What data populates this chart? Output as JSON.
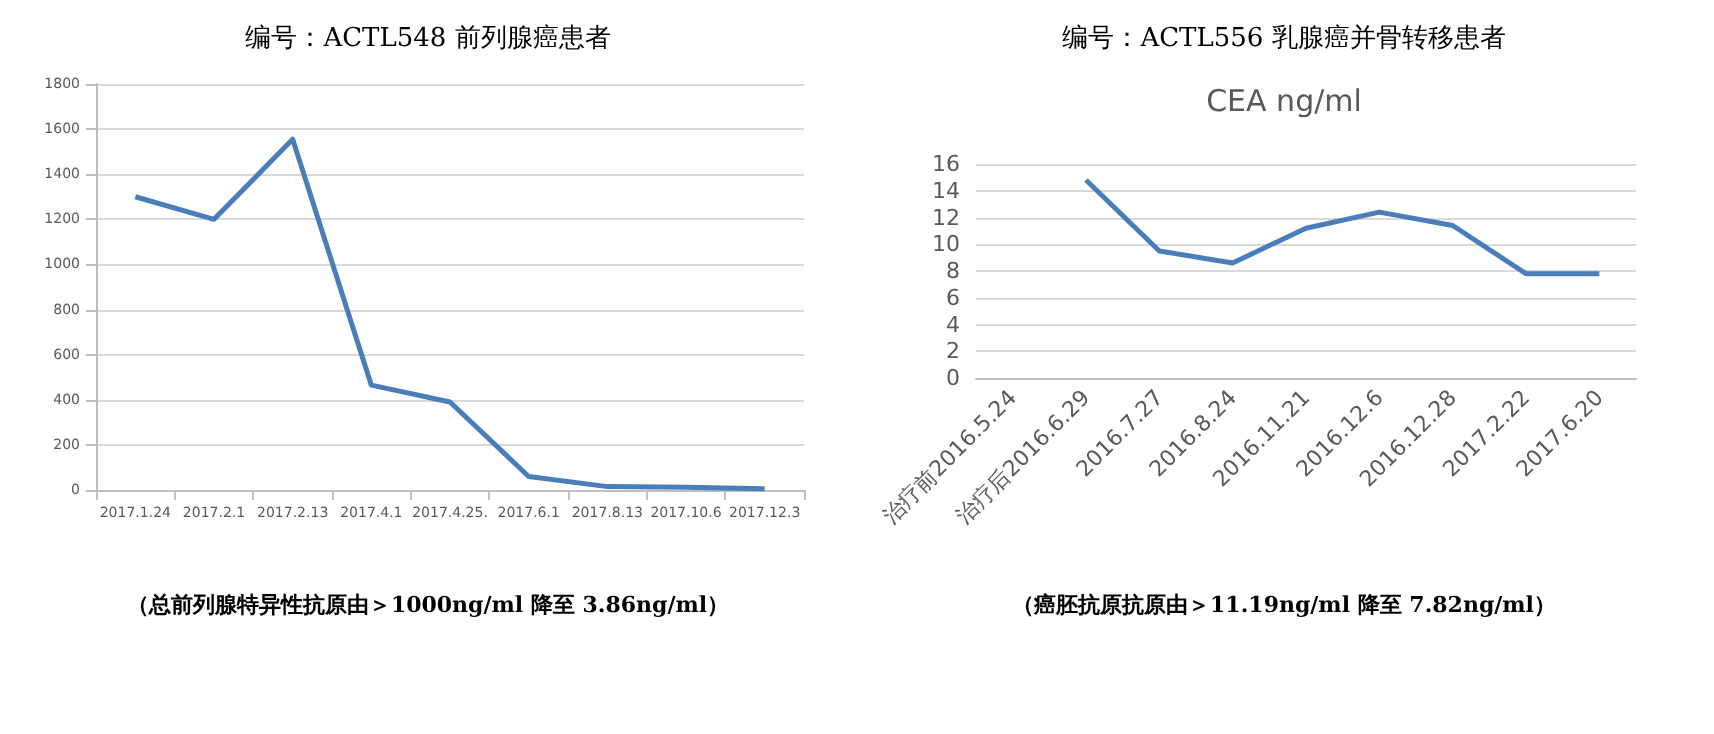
{
  "chart_data": [
    {
      "type": "line",
      "title": "编号：ACTL548 前列腺癌患者",
      "annotations": [
        "（总前列腺特异性抗原由＞1000ng/ml 降至 3.86ng/ml）"
      ],
      "categories": [
        "2017.1.24",
        "2017.2.1",
        "2017.2.13",
        "2017.4.1",
        "2017.4.25.",
        "2017.6.1",
        "2017.8.13",
        "2017.10.6",
        "2017.12.3"
      ],
      "series": [
        {
          "color": "#4a7ebb",
          "values": [
            1300,
            1200,
            1555,
            465,
            390,
            60,
            15,
            12,
            5
          ]
        }
      ],
      "ylim": [
        0,
        1800
      ],
      "yticks": [
        0,
        200,
        400,
        600,
        800,
        1000,
        1200,
        1400,
        1600,
        1800
      ],
      "grid": "y",
      "marker": "none",
      "line_style": "solid"
    },
    {
      "type": "line",
      "title": "编号：ACTL556 乳腺癌并骨转移患者",
      "subtitle": "CEA ng/ml",
      "annotations": [
        "（癌胚抗原抗原由＞11.19ng/ml 降至 7.82ng/ml）"
      ],
      "categories": [
        "治疗前2016.5.24",
        "治疗后2016.6.29",
        "2016.7.27",
        "2016.8.24",
        "2016.11.21",
        "2016.12.6",
        "2016.12.28",
        "2017.2.22",
        "2017.6.20"
      ],
      "series": [
        {
          "color": "#4a7ebb",
          "values": [
            null,
            14.8,
            9.5,
            8.6,
            11.2,
            12.4,
            11.4,
            7.8,
            7.8
          ]
        }
      ],
      "ylim": [
        0,
        16
      ],
      "yticks": [
        0,
        2,
        4,
        6,
        8,
        10,
        12,
        14,
        16
      ],
      "grid": "y",
      "marker": "none",
      "line_style": "solid"
    }
  ]
}
